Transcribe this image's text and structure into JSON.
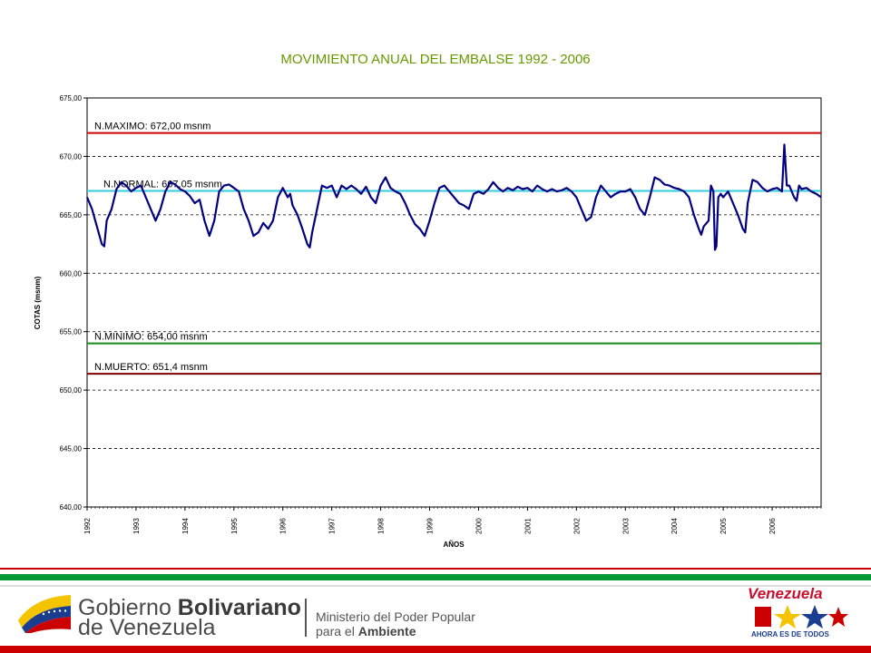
{
  "chart_data": {
    "type": "line",
    "title": "MOVIMIENTO ANUAL DEL EMBALSE 1992 - 2006",
    "xlabel": "AÑOS",
    "ylabel": "COTAS (msnm)",
    "ylim": [
      640,
      675
    ],
    "yticks": [
      "640,00",
      "645,00",
      "650,00",
      "655,00",
      "660,00",
      "665,00",
      "670,00",
      "675,00"
    ],
    "xlim": [
      1992,
      2007
    ],
    "xticks": [
      "1992",
      "1993",
      "1994",
      "1995",
      "1996",
      "1997",
      "1998",
      "1999",
      "2000",
      "2001",
      "2002",
      "2003",
      "2004",
      "2005",
      "2006"
    ],
    "grid": "horizontal dashed",
    "series": [
      {
        "color": "#000080",
        "points": [
          [
            1992.0,
            666.5
          ],
          [
            1992.1,
            665.5
          ],
          [
            1992.2,
            664.0
          ],
          [
            1992.3,
            662.5
          ],
          [
            1992.35,
            662.3
          ],
          [
            1992.4,
            664.5
          ],
          [
            1992.5,
            665.5
          ],
          [
            1992.6,
            667.2
          ],
          [
            1992.7,
            667.8
          ],
          [
            1992.8,
            667.5
          ],
          [
            1992.9,
            667.0
          ],
          [
            1993.0,
            667.3
          ],
          [
            1993.1,
            667.5
          ],
          [
            1993.2,
            666.5
          ],
          [
            1993.3,
            665.5
          ],
          [
            1993.4,
            664.5
          ],
          [
            1993.5,
            665.5
          ],
          [
            1993.6,
            667.0
          ],
          [
            1993.7,
            667.8
          ],
          [
            1993.8,
            667.6
          ],
          [
            1993.9,
            667.2
          ],
          [
            1994.0,
            667.0
          ],
          [
            1994.1,
            666.6
          ],
          [
            1994.2,
            666.0
          ],
          [
            1994.3,
            666.3
          ],
          [
            1994.4,
            664.5
          ],
          [
            1994.5,
            663.2
          ],
          [
            1994.6,
            664.5
          ],
          [
            1994.7,
            667.0
          ],
          [
            1994.8,
            667.5
          ],
          [
            1994.9,
            667.6
          ],
          [
            1995.0,
            667.3
          ],
          [
            1995.1,
            667.0
          ],
          [
            1995.2,
            665.5
          ],
          [
            1995.3,
            664.5
          ],
          [
            1995.4,
            663.2
          ],
          [
            1995.5,
            663.5
          ],
          [
            1995.6,
            664.3
          ],
          [
            1995.7,
            663.8
          ],
          [
            1995.8,
            664.5
          ],
          [
            1995.9,
            666.5
          ],
          [
            1996.0,
            667.3
          ],
          [
            1996.1,
            666.5
          ],
          [
            1996.15,
            666.8
          ],
          [
            1996.2,
            665.8
          ],
          [
            1996.3,
            665.0
          ],
          [
            1996.4,
            663.8
          ],
          [
            1996.5,
            662.5
          ],
          [
            1996.55,
            662.2
          ],
          [
            1996.6,
            663.5
          ],
          [
            1996.7,
            665.5
          ],
          [
            1996.8,
            667.5
          ],
          [
            1996.9,
            667.3
          ],
          [
            1997.0,
            667.5
          ],
          [
            1997.1,
            666.5
          ],
          [
            1997.2,
            667.5
          ],
          [
            1997.3,
            667.2
          ],
          [
            1997.4,
            667.5
          ],
          [
            1997.5,
            667.2
          ],
          [
            1997.6,
            666.8
          ],
          [
            1997.7,
            667.4
          ],
          [
            1997.8,
            666.5
          ],
          [
            1997.9,
            666.0
          ],
          [
            1998.0,
            667.5
          ],
          [
            1998.1,
            668.2
          ],
          [
            1998.2,
            667.3
          ],
          [
            1998.3,
            667.0
          ],
          [
            1998.4,
            666.8
          ],
          [
            1998.5,
            666.0
          ],
          [
            1998.6,
            665.0
          ],
          [
            1998.7,
            664.2
          ],
          [
            1998.8,
            663.8
          ],
          [
            1998.9,
            663.2
          ],
          [
            1999.0,
            664.5
          ],
          [
            1999.1,
            666.0
          ],
          [
            1999.2,
            667.3
          ],
          [
            1999.3,
            667.5
          ],
          [
            1999.4,
            667.0
          ],
          [
            1999.5,
            666.5
          ],
          [
            1999.6,
            666.0
          ],
          [
            1999.7,
            665.8
          ],
          [
            1999.8,
            665.5
          ],
          [
            1999.9,
            666.8
          ],
          [
            2000.0,
            667.0
          ],
          [
            2000.1,
            666.8
          ],
          [
            2000.2,
            667.2
          ],
          [
            2000.3,
            667.8
          ],
          [
            2000.4,
            667.3
          ],
          [
            2000.5,
            667.0
          ],
          [
            2000.6,
            667.3
          ],
          [
            2000.7,
            667.1
          ],
          [
            2000.8,
            667.4
          ],
          [
            2000.9,
            667.2
          ],
          [
            2001.0,
            667.3
          ],
          [
            2001.1,
            667.0
          ],
          [
            2001.2,
            667.5
          ],
          [
            2001.3,
            667.2
          ],
          [
            2001.4,
            667.0
          ],
          [
            2001.5,
            667.2
          ],
          [
            2001.6,
            667.0
          ],
          [
            2001.7,
            667.1
          ],
          [
            2001.8,
            667.3
          ],
          [
            2001.9,
            667.0
          ],
          [
            2002.0,
            666.5
          ],
          [
            2002.1,
            665.5
          ],
          [
            2002.2,
            664.5
          ],
          [
            2002.3,
            664.8
          ],
          [
            2002.4,
            666.5
          ],
          [
            2002.5,
            667.5
          ],
          [
            2002.6,
            667.0
          ],
          [
            2002.7,
            666.5
          ],
          [
            2002.8,
            666.8
          ],
          [
            2002.9,
            667.0
          ],
          [
            2003.0,
            667.0
          ],
          [
            2003.1,
            667.2
          ],
          [
            2003.2,
            666.5
          ],
          [
            2003.3,
            665.5
          ],
          [
            2003.4,
            665.0
          ],
          [
            2003.5,
            666.5
          ],
          [
            2003.6,
            668.2
          ],
          [
            2003.7,
            668.0
          ],
          [
            2003.8,
            667.6
          ],
          [
            2003.9,
            667.5
          ],
          [
            2004.0,
            667.3
          ],
          [
            2004.1,
            667.2
          ],
          [
            2004.2,
            667.0
          ],
          [
            2004.3,
            666.5
          ],
          [
            2004.4,
            665.0
          ],
          [
            2004.5,
            663.8
          ],
          [
            2004.55,
            663.3
          ],
          [
            2004.6,
            664.0
          ],
          [
            2004.7,
            664.5
          ],
          [
            2004.75,
            667.5
          ],
          [
            2004.8,
            667.0
          ],
          [
            2004.83,
            662.0
          ],
          [
            2004.86,
            662.3
          ],
          [
            2004.9,
            666.5
          ],
          [
            2004.95,
            666.8
          ],
          [
            2005.0,
            666.5
          ],
          [
            2005.1,
            667.0
          ],
          [
            2005.2,
            666.0
          ],
          [
            2005.3,
            665.0
          ],
          [
            2005.4,
            663.8
          ],
          [
            2005.45,
            663.5
          ],
          [
            2005.5,
            666.0
          ],
          [
            2005.6,
            668.0
          ],
          [
            2005.7,
            667.8
          ],
          [
            2005.8,
            667.3
          ],
          [
            2005.9,
            667.0
          ],
          [
            2006.0,
            667.2
          ],
          [
            2006.1,
            667.3
          ],
          [
            2006.2,
            667.0
          ],
          [
            2006.25,
            671.0
          ],
          [
            2006.3,
            667.5
          ],
          [
            2006.35,
            667.5
          ],
          [
            2006.4,
            667.0
          ],
          [
            2006.45,
            666.5
          ],
          [
            2006.5,
            666.2
          ],
          [
            2006.55,
            667.5
          ],
          [
            2006.6,
            667.2
          ],
          [
            2006.7,
            667.3
          ],
          [
            2006.8,
            667.0
          ],
          [
            2006.9,
            666.8
          ],
          [
            2007.0,
            666.5
          ]
        ]
      }
    ],
    "reference_lines": [
      {
        "label": "N.MAXIMO: 672,00 msnm",
        "value": 672.0,
        "color": "#cc0000"
      },
      {
        "label": "N.NORMAL: 667,05 msnm",
        "value": 667.05,
        "color": "#33ccdd"
      },
      {
        "label": "N.MINIMO: 654,00 msnm",
        "value": 654.0,
        "color": "#1a8a1a"
      },
      {
        "label": "N.MUERTO: 651,4 msnm",
        "value": 651.4,
        "color": "#7a0000"
      }
    ]
  },
  "footer": {
    "gov_line1_a": "Gobierno ",
    "gov_line1_b": "Bolivariano",
    "gov_line2": "de Venezuela",
    "ministry_line1": "Ministerio del Poder Popular",
    "ministry_line2_a": "para el ",
    "ministry_line2_b": "Ambiente",
    "brand": "Venezuela",
    "slogan": "AHORA ES DE TODOS"
  },
  "colors": {
    "title": "#669900",
    "stripe_red": "#cc0000",
    "stripe_green": "#009933"
  }
}
